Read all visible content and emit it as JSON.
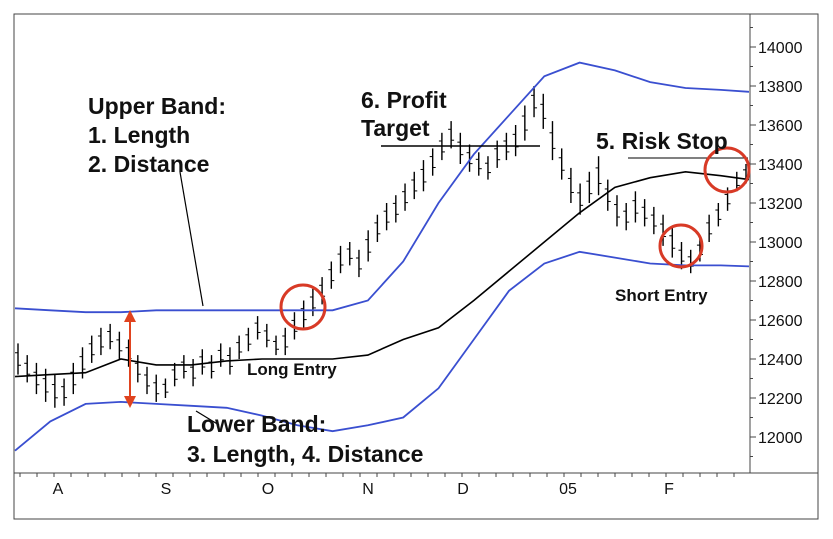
{
  "chart_data": {
    "type": "line",
    "title": "",
    "xlabel": "",
    "ylabel": "",
    "ylim": [
      11850,
      14150
    ],
    "x_tick_labels": [
      "A",
      "S",
      "O",
      "N",
      "D",
      "05",
      "F"
    ],
    "y_tick_labels": [
      "14000",
      "13800",
      "13600",
      "13400",
      "13200",
      "13000",
      "12800",
      "12600",
      "12400",
      "12200",
      "12000"
    ],
    "annotations": {
      "upper_band_title": "Upper Band:",
      "upper_band_1": "1. Length",
      "upper_band_2": "2. Distance",
      "profit_target_1": "6. Profit",
      "profit_target_2": "Target",
      "risk_stop": "5. Risk Stop",
      "short_entry": "Short Entry",
      "long_entry": "Long Entry",
      "lower_band_title": "Lower Band:",
      "lower_band_2": "3. Length, 4. Distance"
    },
    "colors": {
      "bands": "#3a4fd0",
      "mid": "#000000",
      "bars": "#000000",
      "circles": "#d83a26",
      "arrow": "#e0431f"
    },
    "series": [
      {
        "values_x": [
          0,
          10,
          20,
          30,
          40,
          50,
          60,
          70,
          80,
          90,
          100,
          110,
          120,
          130,
          140,
          150,
          160,
          170,
          180,
          190,
          200,
          208
        ],
        "upper_band": [
          12660,
          12650,
          12640,
          12640,
          12650,
          12650,
          12650,
          12650,
          12650,
          12650,
          12700,
          12900,
          13200,
          13450,
          13650,
          13850,
          13920,
          13880,
          13820,
          13790,
          13780,
          13770
        ],
        "mid": [
          12310,
          12320,
          12330,
          12400,
          12370,
          12370,
          12390,
          12400,
          12400,
          12400,
          12420,
          12500,
          12560,
          12700,
          12850,
          13000,
          13150,
          13280,
          13330,
          13360,
          13340,
          13320
        ],
        "lower_band": [
          11930,
          12080,
          12170,
          12180,
          12170,
          12160,
          12150,
          12110,
          12060,
          12030,
          12060,
          12100,
          12250,
          12500,
          12750,
          12890,
          12950,
          12920,
          12890,
          12880,
          12880,
          12875
        ]
      }
    ],
    "ohlc_bars": [
      [
        12480,
        12320
      ],
      [
        12420,
        12280
      ],
      [
        12380,
        12220
      ],
      [
        12350,
        12180
      ],
      [
        12320,
        12150
      ],
      [
        12300,
        12160
      ],
      [
        12380,
        12220
      ],
      [
        12460,
        12300
      ],
      [
        12520,
        12380
      ],
      [
        12560,
        12420
      ],
      [
        12580,
        12450
      ],
      [
        12540,
        12400
      ],
      [
        12500,
        12360
      ],
      [
        12420,
        12280
      ],
      [
        12360,
        12220
      ],
      [
        12320,
        12180
      ],
      [
        12300,
        12200
      ],
      [
        12380,
        12260
      ],
      [
        12420,
        12300
      ],
      [
        12400,
        12260
      ],
      [
        12450,
        12320
      ],
      [
        12420,
        12300
      ],
      [
        12480,
        12360
      ],
      [
        12460,
        12320
      ],
      [
        12520,
        12400
      ],
      [
        12560,
        12440
      ],
      [
        12620,
        12500
      ],
      [
        12580,
        12460
      ],
      [
        12520,
        12420
      ],
      [
        12560,
        12420
      ],
      [
        12640,
        12500
      ],
      [
        12700,
        12560
      ],
      [
        12760,
        12620
      ],
      [
        12820,
        12680
      ],
      [
        12900,
        12760
      ],
      [
        12980,
        12840
      ],
      [
        13000,
        12880
      ],
      [
        12960,
        12820
      ],
      [
        13060,
        12900
      ],
      [
        13140,
        13000
      ],
      [
        13200,
        13060
      ],
      [
        13240,
        13100
      ],
      [
        13300,
        13160
      ],
      [
        13360,
        13220
      ],
      [
        13420,
        13260
      ],
      [
        13480,
        13340
      ],
      [
        13560,
        13420
      ],
      [
        13620,
        13480
      ],
      [
        13560,
        13400
      ],
      [
        13500,
        13360
      ],
      [
        13460,
        13340
      ],
      [
        13440,
        13320
      ],
      [
        13520,
        13380
      ],
      [
        13560,
        13420
      ],
      [
        13600,
        13440
      ],
      [
        13700,
        13520
      ],
      [
        13800,
        13640
      ],
      [
        13760,
        13580
      ],
      [
        13620,
        13420
      ],
      [
        13480,
        13320
      ],
      [
        13380,
        13200
      ],
      [
        13300,
        13140
      ],
      [
        13360,
        13200
      ],
      [
        13440,
        13240
      ],
      [
        13320,
        13160
      ],
      [
        13240,
        13080
      ],
      [
        13200,
        13060
      ],
      [
        13260,
        13100
      ],
      [
        13220,
        13080
      ],
      [
        13180,
        13040
      ],
      [
        13140,
        12980
      ],
      [
        13080,
        12920
      ],
      [
        13000,
        12860
      ],
      [
        12960,
        12840
      ],
      [
        13020,
        12900
      ],
      [
        13140,
        13000
      ],
      [
        13200,
        13080
      ],
      [
        13280,
        13160
      ],
      [
        13360,
        13260
      ],
      [
        13400,
        13300
      ]
    ]
  }
}
